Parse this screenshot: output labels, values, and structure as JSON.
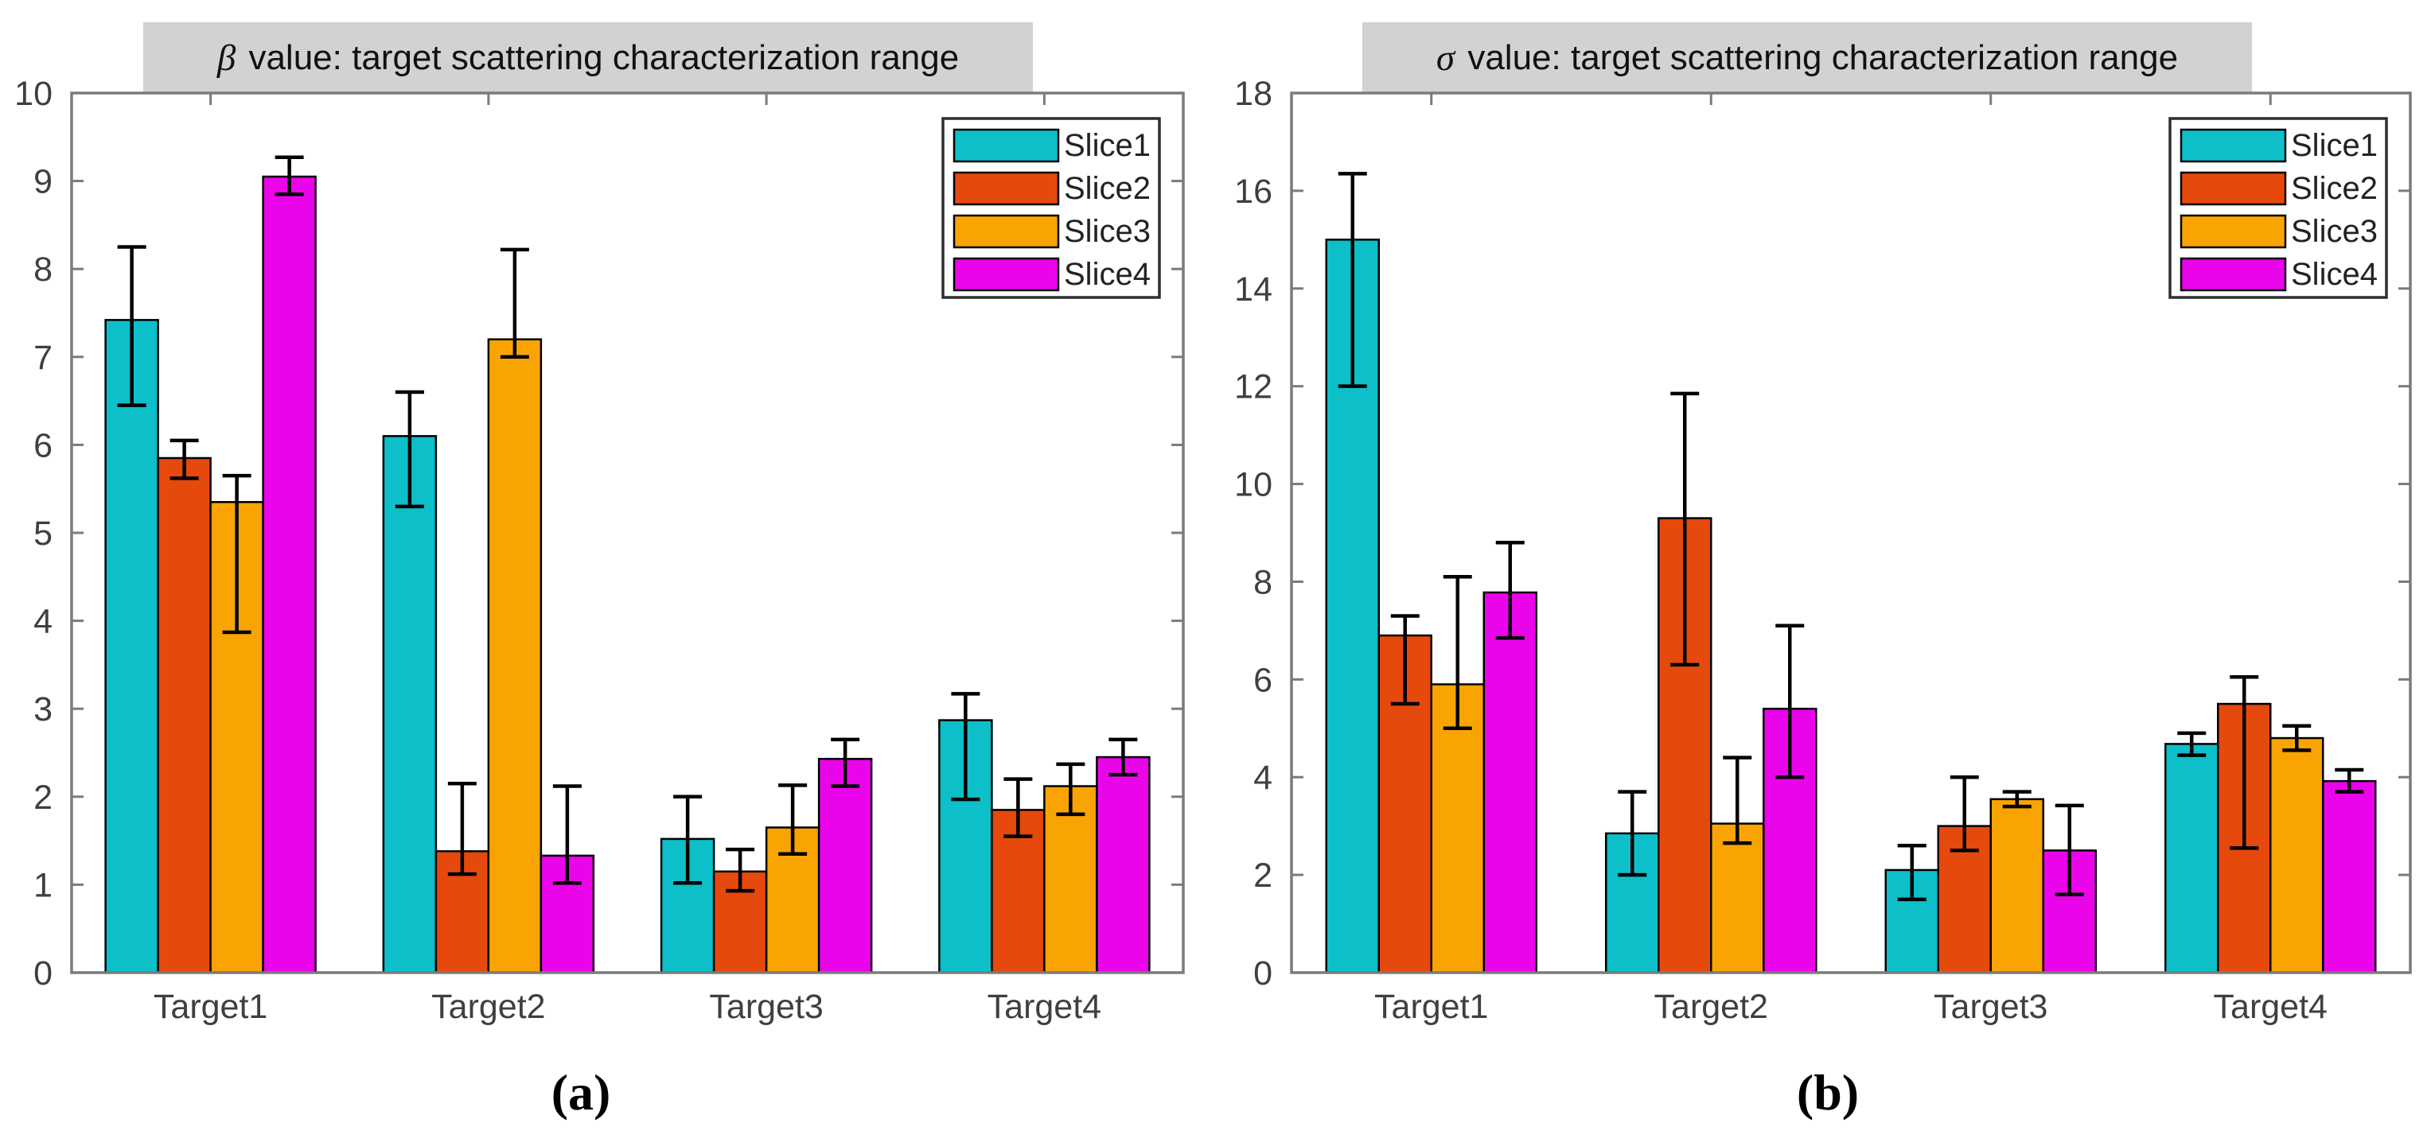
{
  "figure": {
    "background": "#ffffff",
    "caption_a": "(a)",
    "caption_b": "(b)"
  },
  "palette": {
    "axis_line": "#7b7b7b",
    "tick_label": "#3f3f3f",
    "title_background": "#d2d2d2",
    "error_bar": "#000000",
    "bar_outline": "#000000",
    "legend_border": "#2e2e2e"
  },
  "chart_data": [
    {
      "id": "a",
      "type": "bar",
      "title_symbol": "β",
      "title_rest": " value: target scattering characterization range",
      "title": "β value: target scattering characterization range",
      "caption": "(a)",
      "categories": [
        "Target1",
        "Target2",
        "Target3",
        "Target4"
      ],
      "ylim": [
        0,
        10
      ],
      "ytick_step": 1,
      "ytick_labels": [
        "0",
        "1",
        "2",
        "3",
        "4",
        "5",
        "6",
        "7",
        "8",
        "9",
        "10"
      ],
      "grid": false,
      "legend_position": "top-right",
      "series": [
        {
          "name": "Slice1",
          "color": "#0cbfc9",
          "values": [
            7.42,
            6.1,
            1.52,
            2.87
          ],
          "err_lo": [
            6.45,
            5.3,
            1.02,
            1.97
          ],
          "err_hi": [
            8.25,
            6.6,
            2.0,
            3.17
          ]
        },
        {
          "name": "Slice2",
          "color": "#e5490c",
          "values": [
            5.85,
            1.38,
            1.15,
            1.85
          ],
          "err_lo": [
            5.62,
            1.12,
            0.93,
            1.55
          ],
          "err_hi": [
            6.05,
            2.15,
            1.4,
            2.2
          ]
        },
        {
          "name": "Slice3",
          "color": "#f9a402",
          "values": [
            5.35,
            7.2,
            1.65,
            2.12
          ],
          "err_lo": [
            3.87,
            7.0,
            1.35,
            1.8
          ],
          "err_hi": [
            5.65,
            8.22,
            2.13,
            2.37
          ]
        },
        {
          "name": "Slice4",
          "color": "#ea04ea",
          "values": [
            9.05,
            1.33,
            2.43,
            2.45
          ],
          "err_lo": [
            8.85,
            1.02,
            2.12,
            2.25
          ],
          "err_hi": [
            9.27,
            2.12,
            2.65,
            2.65
          ]
        }
      ]
    },
    {
      "id": "b",
      "type": "bar",
      "title_symbol": "σ",
      "title_rest": " value: target scattering characterization range",
      "title": "σ value: target scattering characterization range",
      "caption": "(b)",
      "categories": [
        "Target1",
        "Target2",
        "Target3",
        "Target4"
      ],
      "ylim": [
        0,
        18
      ],
      "ytick_step": 2,
      "ytick_labels": [
        "0",
        "2",
        "4",
        "6",
        "8",
        "10",
        "12",
        "14",
        "16",
        "18"
      ],
      "grid": false,
      "legend_position": "top-right",
      "series": [
        {
          "name": "Slice1",
          "color": "#0cbfc9",
          "values": [
            15.0,
            2.85,
            2.1,
            4.68
          ],
          "err_lo": [
            12.0,
            2.0,
            1.5,
            4.45
          ],
          "err_hi": [
            16.35,
            3.7,
            2.6,
            4.9
          ]
        },
        {
          "name": "Slice2",
          "color": "#e5490c",
          "values": [
            6.9,
            9.3,
            3.0,
            5.5
          ],
          "err_lo": [
            5.5,
            6.3,
            2.5,
            2.55
          ],
          "err_hi": [
            7.3,
            11.85,
            4.0,
            6.05
          ]
        },
        {
          "name": "Slice3",
          "color": "#f9a402",
          "values": [
            5.9,
            3.05,
            3.55,
            4.8
          ],
          "err_lo": [
            5.0,
            2.65,
            3.4,
            4.55
          ],
          "err_hi": [
            8.1,
            4.4,
            3.7,
            5.05
          ]
        },
        {
          "name": "Slice4",
          "color": "#ea04ea",
          "values": [
            7.78,
            5.4,
            2.5,
            3.92
          ],
          "err_lo": [
            6.85,
            4.0,
            1.6,
            3.7
          ],
          "err_hi": [
            8.8,
            7.1,
            3.42,
            4.15
          ]
        }
      ]
    }
  ]
}
